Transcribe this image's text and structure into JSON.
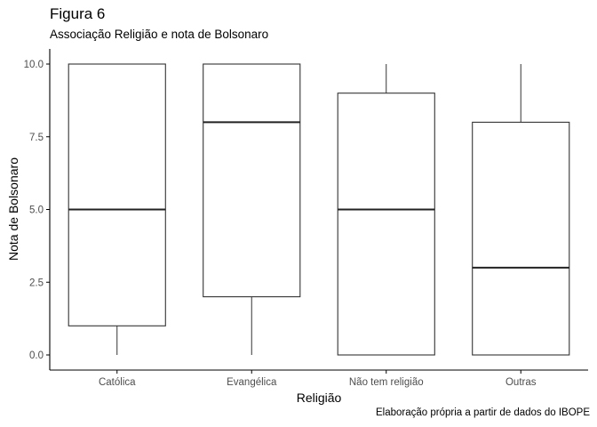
{
  "chart_data": {
    "type": "boxplot",
    "title": "Figura 6",
    "subtitle": "Associação Religião e nota de Bolsonaro",
    "caption": "Elaboração própria a partir de dados do IBOPE",
    "xlabel": "Religião",
    "ylabel": "Nota de Bolsonaro",
    "ylim": [
      0,
      10
    ],
    "y_ticks": [
      "0.0",
      "2.5",
      "5.0",
      "7.5",
      "10.0"
    ],
    "y_tick_values": [
      0,
      2.5,
      5,
      7.5,
      10
    ],
    "grid": false,
    "categories": [
      "Católica",
      "Evangélica",
      "Não tem religião",
      "Outras"
    ],
    "boxes": [
      {
        "category": "Católica",
        "min": 0,
        "q1": 1,
        "median": 5,
        "q3": 10,
        "max": 10
      },
      {
        "category": "Evangélica",
        "min": 0,
        "q1": 2,
        "median": 8,
        "q3": 10,
        "max": 10
      },
      {
        "category": "Não tem religião",
        "min": 0,
        "q1": 0,
        "median": 5,
        "q3": 9,
        "max": 10
      },
      {
        "category": "Outras",
        "min": 0,
        "q1": 0,
        "median": 3,
        "q3": 8,
        "max": 10
      }
    ],
    "colors": {
      "box_fill": "#ffffff",
      "box_stroke": "#333333",
      "median": "#222222",
      "axis": "#000000",
      "tick_label": "#4d4d4d"
    }
  }
}
